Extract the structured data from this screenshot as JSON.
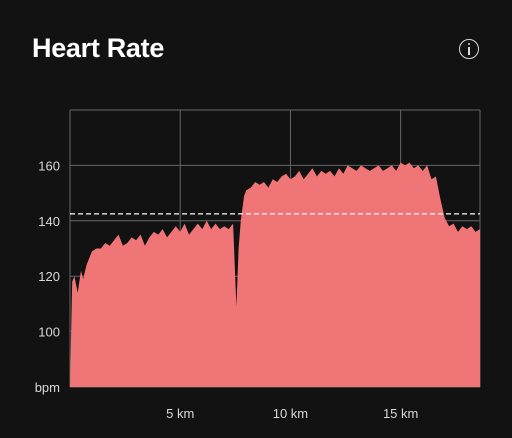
{
  "header": {
    "title": "Heart Rate",
    "info_icon": "info-icon"
  },
  "colors": {
    "background": "#121212",
    "area_fill": "#f07576",
    "grid": "#666666",
    "avg_line": "#ffffff",
    "text": "#d9d9d9"
  },
  "chart_data": {
    "type": "area",
    "title": "Heart Rate",
    "xlabel": "",
    "ylabel": "bpm",
    "xlim": [
      0,
      18.6
    ],
    "ylim": [
      80,
      180
    ],
    "x_ticks": [
      {
        "value": 5,
        "label": "5 km"
      },
      {
        "value": 10,
        "label": "10 km"
      },
      {
        "value": 15,
        "label": "15 km"
      }
    ],
    "y_ticks": [
      {
        "value": 80,
        "label": "bpm"
      },
      {
        "value": 100,
        "label": "100"
      },
      {
        "value": 120,
        "label": "120"
      },
      {
        "value": 140,
        "label": "140"
      },
      {
        "value": 160,
        "label": "160"
      }
    ],
    "grid": true,
    "average_bpm": 142.5,
    "series": [
      {
        "x": [
          0,
          0.1,
          0.2,
          0.35,
          0.5,
          0.6,
          0.75,
          0.9,
          1.0,
          1.2,
          1.4,
          1.6,
          1.8,
          2.0,
          2.2,
          2.4,
          2.6,
          2.8,
          3.0,
          3.2,
          3.4,
          3.6,
          3.8,
          4.0,
          4.2,
          4.4,
          4.6,
          4.8,
          5.0,
          5.2,
          5.4,
          5.6,
          5.8,
          6.0,
          6.2,
          6.4,
          6.6,
          6.8,
          7.0,
          7.2,
          7.4,
          7.55,
          7.65,
          7.75,
          7.9,
          8.0,
          8.2,
          8.4,
          8.6,
          8.8,
          9.0,
          9.2,
          9.4,
          9.6,
          9.8,
          10.0,
          10.2,
          10.4,
          10.6,
          10.8,
          11.0,
          11.2,
          11.4,
          11.6,
          11.8,
          12.0,
          12.2,
          12.4,
          12.6,
          12.8,
          13.0,
          13.2,
          13.4,
          13.6,
          13.8,
          14.0,
          14.2,
          14.4,
          14.6,
          14.8,
          15.0,
          15.2,
          15.4,
          15.6,
          15.8,
          16.0,
          16.2,
          16.4,
          16.6,
          16.8,
          17.0,
          17.2,
          17.4,
          17.6,
          17.8,
          18.0,
          18.2,
          18.4,
          18.6
        ],
        "y": [
          80,
          118,
          120,
          114,
          122,
          119,
          124,
          127,
          129,
          130,
          130,
          132,
          131,
          133,
          135,
          131,
          132,
          134,
          133,
          135,
          131,
          134,
          136,
          135,
          137,
          134,
          136,
          138,
          136,
          139,
          135,
          137,
          139,
          137,
          140,
          137,
          139,
          137,
          138,
          137,
          139,
          109,
          130,
          140,
          149,
          151,
          152,
          154,
          153,
          154,
          152,
          155,
          154,
          156,
          157,
          155,
          156,
          158,
          155,
          157,
          159,
          156,
          158,
          157,
          158,
          156,
          159,
          157,
          160,
          159,
          158,
          160,
          159,
          158,
          159,
          160,
          158,
          159,
          160,
          158,
          161,
          160,
          161,
          159,
          160,
          158,
          160,
          155,
          156,
          148,
          141,
          138,
          139,
          136,
          138,
          137,
          138,
          136,
          137
        ]
      }
    ]
  }
}
